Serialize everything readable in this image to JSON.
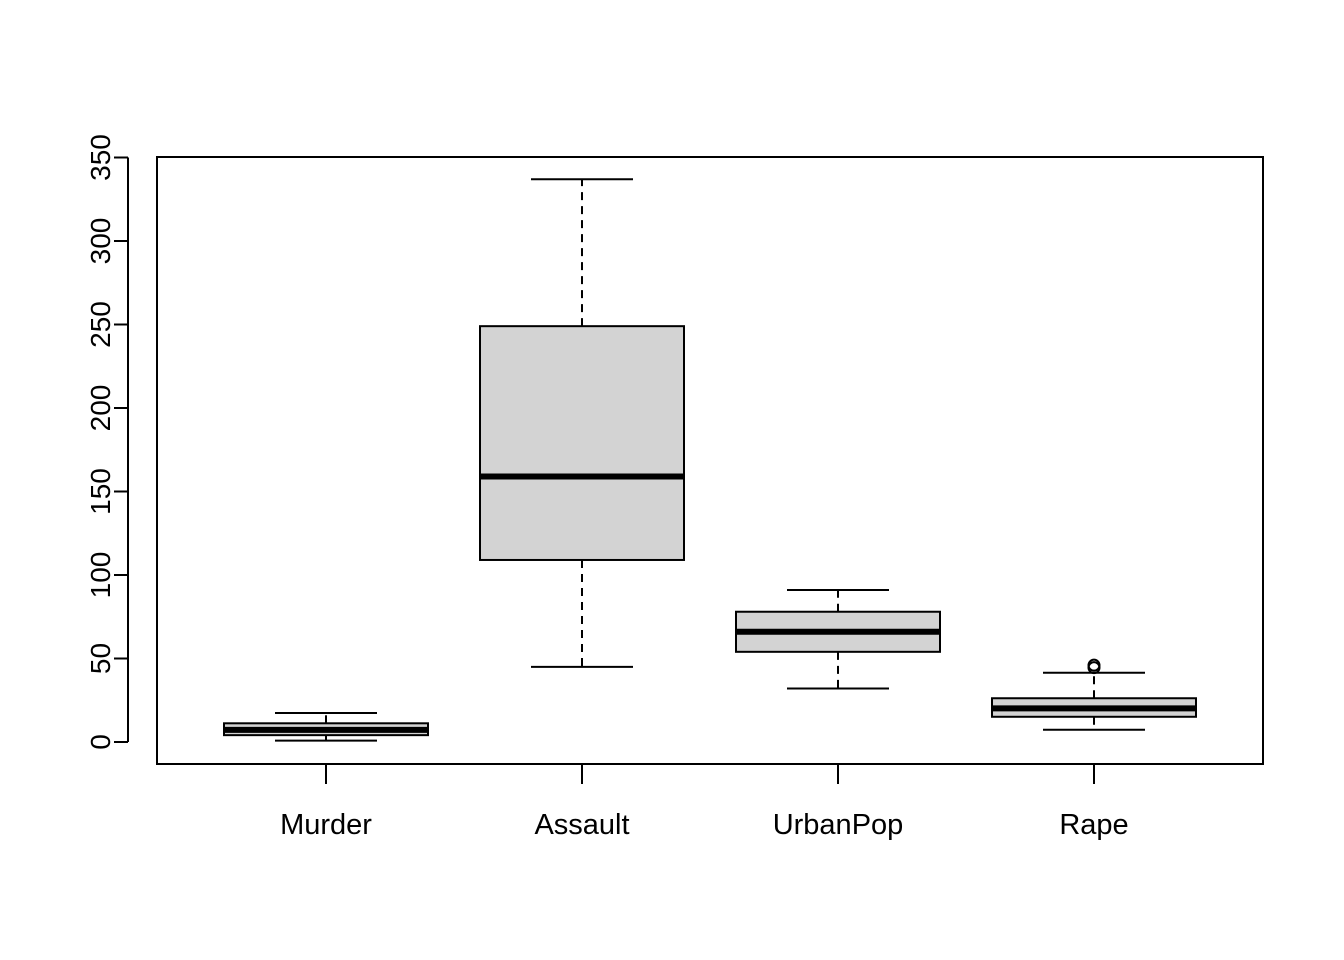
{
  "chart_data": {
    "type": "box",
    "categories": [
      "Murder",
      "Assault",
      "UrbanPop",
      "Rape"
    ],
    "boxes": [
      {
        "name": "Murder",
        "whisker_low": 0.8,
        "q1": 4.1,
        "median": 7.25,
        "q3": 11.2,
        "whisker_high": 17.4,
        "outliers": []
      },
      {
        "name": "Assault",
        "whisker_low": 45,
        "q1": 109,
        "median": 159,
        "q3": 249,
        "whisker_high": 337,
        "outliers": []
      },
      {
        "name": "UrbanPop",
        "whisker_low": 32,
        "q1": 54,
        "median": 66,
        "q3": 78,
        "whisker_high": 91,
        "outliers": []
      },
      {
        "name": "Rape",
        "whisker_low": 7.3,
        "q1": 15.1,
        "median": 20.1,
        "q3": 26.2,
        "whisker_high": 41.5,
        "outliers": [
          44.5,
          46.0
        ]
      }
    ],
    "yticks": [
      "0",
      "50",
      "100",
      "150",
      "200",
      "250",
      "300",
      "350"
    ],
    "ylim": [
      -12.5,
      350
    ],
    "box_fill": "#d3d3d3",
    "line_color": "#000000",
    "title": "",
    "xlabel": "",
    "ylabel": "",
    "grid": false
  }
}
